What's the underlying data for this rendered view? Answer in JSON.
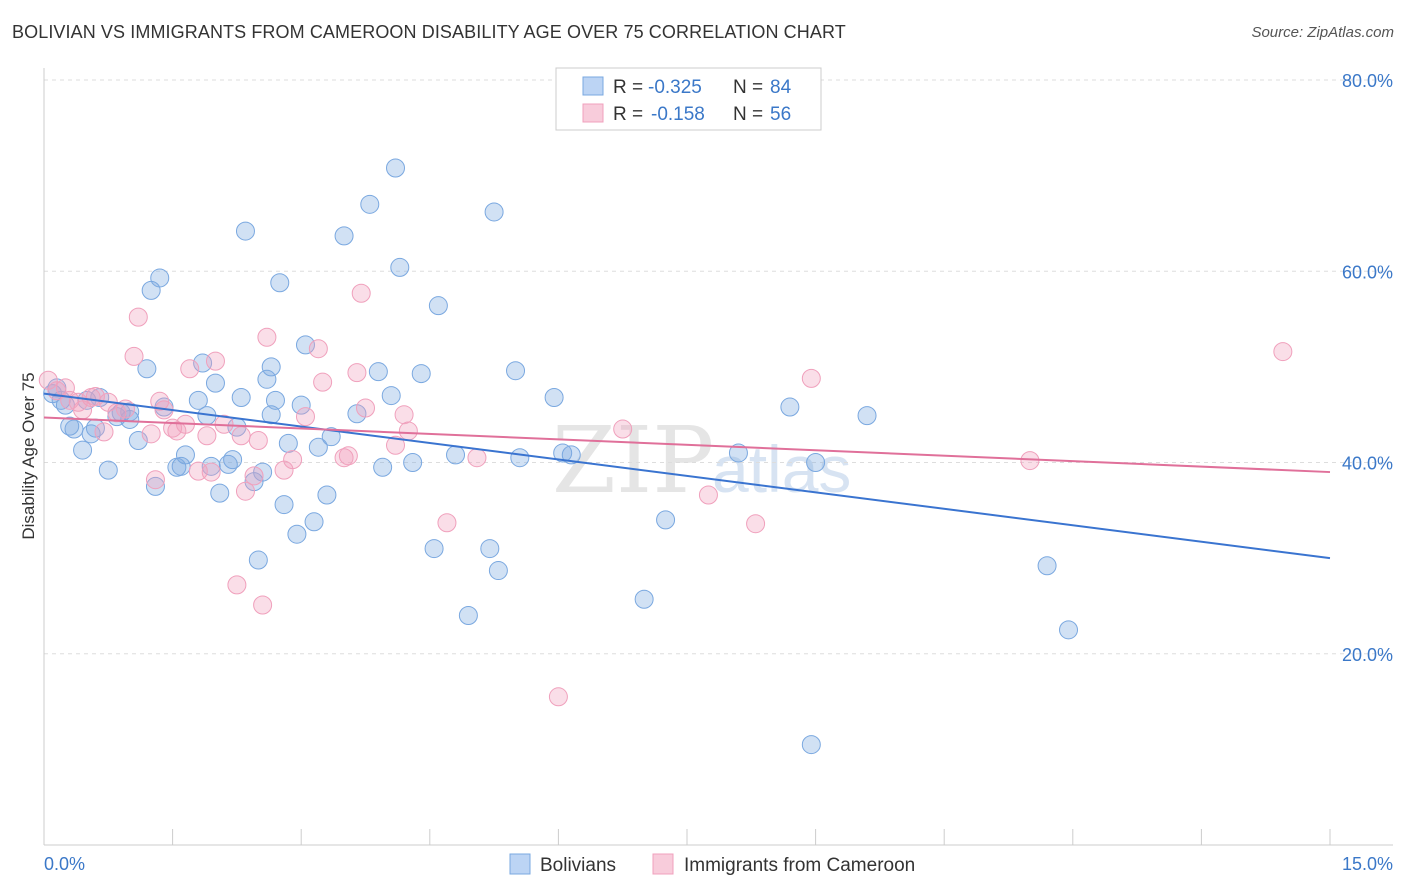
{
  "header": {
    "title": "BOLIVIAN VS IMMIGRANTS FROM CAMEROON DISABILITY AGE OVER 75 CORRELATION CHART",
    "source": "Source: ZipAtlas.com"
  },
  "watermark": {
    "zip": "ZIP",
    "atlas": "atlas"
  },
  "legend_top": {
    "rows": [
      {
        "r_label": "R =",
        "r_value": "-0.325",
        "n_label": "N =",
        "n_value": "84",
        "color": "#7aa8e0"
      },
      {
        "r_label": "R =",
        "r_value": "-0.158",
        "n_label": "N =",
        "n_value": "56",
        "color": "#f0a0bc"
      }
    ]
  },
  "legend_bottom": {
    "items": [
      {
        "label": "Bolivians",
        "color": "#7aa8e0"
      },
      {
        "label": "Immigrants from Cameroon",
        "color": "#f0a0bc"
      }
    ]
  },
  "chart_data": {
    "type": "scatter",
    "title": "BOLIVIAN VS IMMIGRANTS FROM CAMEROON DISABILITY AGE OVER 75 CORRELATION CHART",
    "xlabel": "",
    "ylabel": "Disability Age Over 75",
    "xlim": [
      0,
      15
    ],
    "ylim": [
      0,
      80
    ],
    "x_tick_labels": [
      "0.0%",
      "15.0%"
    ],
    "y_ticks": [
      20,
      40,
      60,
      80
    ],
    "y_tick_labels": [
      "20.0%",
      "40.0%",
      "60.0%",
      "80.0%"
    ],
    "grid": true,
    "legend_position": "top-center",
    "series": [
      {
        "name": "Bolivians",
        "color": "#7aa8e0",
        "line_color": "#3a74d0",
        "trend": {
          "x": [
            0,
            15
          ],
          "y": [
            47.2,
            30.0
          ]
        },
        "points": [
          [
            0.1,
            47.2
          ],
          [
            0.15,
            47.8
          ],
          [
            0.2,
            46.5
          ],
          [
            0.25,
            46.0
          ],
          [
            0.3,
            43.8
          ],
          [
            0.35,
            43.5
          ],
          [
            0.45,
            41.3
          ],
          [
            0.5,
            46.5
          ],
          [
            0.55,
            43.0
          ],
          [
            0.65,
            46.8
          ],
          [
            0.75,
            39.2
          ],
          [
            0.85,
            44.8
          ],
          [
            0.9,
            45.2
          ],
          [
            1.0,
            45.3
          ],
          [
            1.1,
            42.3
          ],
          [
            1.2,
            49.8
          ],
          [
            1.25,
            58.0
          ],
          [
            1.3,
            37.5
          ],
          [
            1.35,
            59.3
          ],
          [
            1.4,
            45.8
          ],
          [
            1.55,
            39.5
          ],
          [
            1.6,
            39.6
          ],
          [
            1.65,
            40.8
          ],
          [
            1.8,
            46.5
          ],
          [
            1.85,
            50.4
          ],
          [
            1.9,
            44.9
          ],
          [
            1.95,
            39.6
          ],
          [
            2.0,
            48.3
          ],
          [
            2.05,
            36.8
          ],
          [
            2.15,
            39.8
          ],
          [
            2.2,
            40.3
          ],
          [
            2.25,
            43.7
          ],
          [
            2.3,
            46.8
          ],
          [
            2.35,
            64.2
          ],
          [
            2.45,
            38.0
          ],
          [
            2.5,
            29.8
          ],
          [
            2.55,
            39.0
          ],
          [
            2.6,
            48.7
          ],
          [
            2.65,
            50.0
          ],
          [
            2.7,
            46.5
          ],
          [
            2.75,
            58.8
          ],
          [
            2.8,
            35.6
          ],
          [
            2.85,
            42.0
          ],
          [
            2.95,
            32.5
          ],
          [
            3.05,
            52.3
          ],
          [
            3.15,
            33.8
          ],
          [
            3.2,
            41.6
          ],
          [
            3.3,
            36.6
          ],
          [
            3.35,
            42.7
          ],
          [
            3.5,
            63.7
          ],
          [
            3.65,
            45.1
          ],
          [
            3.8,
            67.0
          ],
          [
            3.9,
            49.5
          ],
          [
            3.95,
            39.5
          ],
          [
            4.05,
            47.0
          ],
          [
            4.15,
            60.4
          ],
          [
            4.3,
            40.0
          ],
          [
            4.4,
            49.3
          ],
          [
            4.55,
            31.0
          ],
          [
            4.6,
            56.4
          ],
          [
            4.8,
            40.8
          ],
          [
            4.95,
            24.0
          ],
          [
            5.2,
            31.0
          ],
          [
            5.25,
            66.2
          ],
          [
            5.3,
            28.7
          ],
          [
            5.5,
            49.6
          ],
          [
            5.95,
            46.8
          ],
          [
            6.05,
            41.0
          ],
          [
            6.15,
            40.8
          ],
          [
            7.0,
            25.7
          ],
          [
            7.25,
            34.0
          ],
          [
            8.1,
            41.0
          ],
          [
            8.7,
            45.8
          ],
          [
            8.95,
            10.5
          ],
          [
            9.0,
            40.0
          ],
          [
            9.6,
            44.9
          ],
          [
            11.7,
            29.2
          ],
          [
            11.95,
            22.5
          ],
          [
            5.55,
            40.5
          ],
          [
            4.1,
            70.8
          ],
          [
            0.6,
            43.6
          ],
          [
            1.0,
            44.5
          ],
          [
            2.65,
            45.0
          ],
          [
            3.0,
            46.0
          ]
        ]
      },
      {
        "name": "Immigrants from Cameroon",
        "color": "#f0a0bc",
        "line_color": "#e0709a",
        "trend": {
          "x": [
            0,
            15
          ],
          "y": [
            44.7,
            39.0
          ]
        },
        "points": [
          [
            0.05,
            48.6
          ],
          [
            0.15,
            47.5
          ],
          [
            0.25,
            47.8
          ],
          [
            0.3,
            46.5
          ],
          [
            0.4,
            46.3
          ],
          [
            0.45,
            45.5
          ],
          [
            0.55,
            46.8
          ],
          [
            0.6,
            46.9
          ],
          [
            0.7,
            43.2
          ],
          [
            0.75,
            46.3
          ],
          [
            0.85,
            45.2
          ],
          [
            0.95,
            45.6
          ],
          [
            1.1,
            55.2
          ],
          [
            1.05,
            51.1
          ],
          [
            1.25,
            43.0
          ],
          [
            1.3,
            38.2
          ],
          [
            1.35,
            46.4
          ],
          [
            1.4,
            45.5
          ],
          [
            1.5,
            43.6
          ],
          [
            1.55,
            43.3
          ],
          [
            1.65,
            44.0
          ],
          [
            1.7,
            49.8
          ],
          [
            1.8,
            39.1
          ],
          [
            1.9,
            42.8
          ],
          [
            1.95,
            39.0
          ],
          [
            2.0,
            50.6
          ],
          [
            2.1,
            44.0
          ],
          [
            2.25,
            27.2
          ],
          [
            2.3,
            42.8
          ],
          [
            2.35,
            37.0
          ],
          [
            2.45,
            38.6
          ],
          [
            2.5,
            42.3
          ],
          [
            2.55,
            25.1
          ],
          [
            2.6,
            53.1
          ],
          [
            2.8,
            39.2
          ],
          [
            2.9,
            40.3
          ],
          [
            3.05,
            44.8
          ],
          [
            3.2,
            51.9
          ],
          [
            3.25,
            48.4
          ],
          [
            3.5,
            40.5
          ],
          [
            3.55,
            40.7
          ],
          [
            3.65,
            49.4
          ],
          [
            3.7,
            57.7
          ],
          [
            3.75,
            45.7
          ],
          [
            4.1,
            41.8
          ],
          [
            4.2,
            45.0
          ],
          [
            4.25,
            43.3
          ],
          [
            4.7,
            33.7
          ],
          [
            5.05,
            40.5
          ],
          [
            6.75,
            43.5
          ],
          [
            6.0,
            15.5
          ],
          [
            7.75,
            36.6
          ],
          [
            8.3,
            33.6
          ],
          [
            8.95,
            48.8
          ],
          [
            11.5,
            40.2
          ],
          [
            14.45,
            51.6
          ]
        ]
      }
    ]
  }
}
